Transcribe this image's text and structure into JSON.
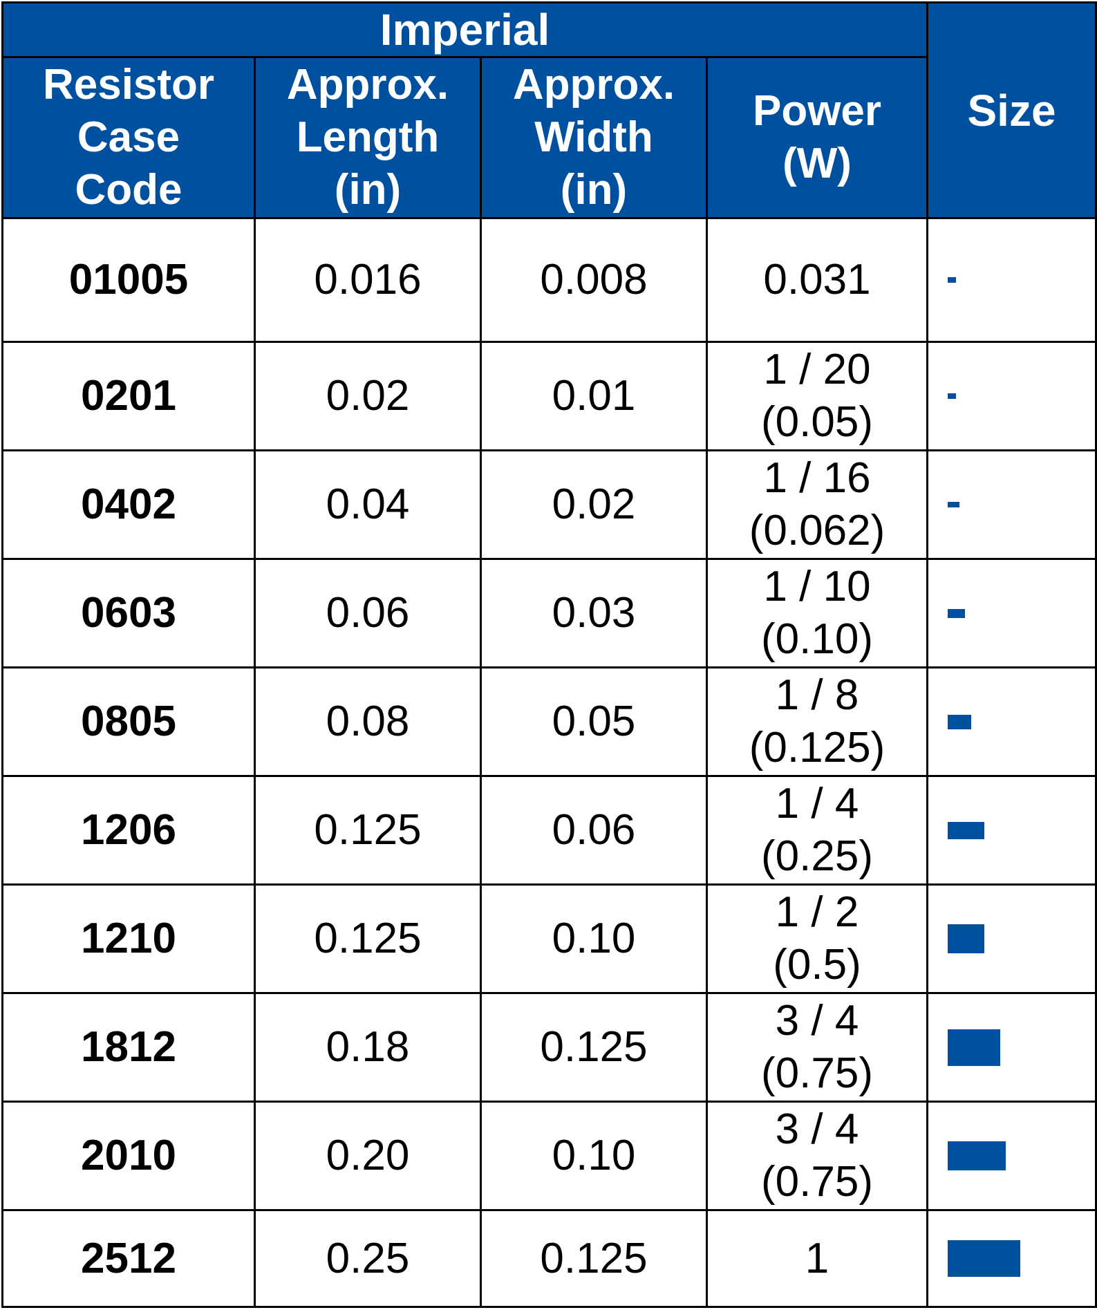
{
  "table": {
    "group_header": "Imperial",
    "columns": [
      {
        "label": "Resistor Case Code",
        "lines": [
          "Resistor",
          "Case",
          "Code"
        ]
      },
      {
        "label": "Approx. Length (in)",
        "lines": [
          "Approx.",
          "Length",
          "(in)"
        ]
      },
      {
        "label": "Approx. Width (in)",
        "lines": [
          "Approx.",
          "Width",
          "(in)"
        ]
      },
      {
        "label": "Power (W)",
        "lines": [
          "Power",
          "(W)"
        ]
      },
      {
        "label": "Size",
        "lines": [
          "Size"
        ]
      }
    ],
    "rows": [
      {
        "code": "01005",
        "length": "0.016",
        "width": "0.008",
        "power": [
          "0.031"
        ],
        "size_length_in": 0.016,
        "size_width_in": 0.008
      },
      {
        "code": "0201",
        "length": "0.02",
        "width": "0.01",
        "power": [
          "1 / 20",
          "(0.05)"
        ],
        "size_length_in": 0.02,
        "size_width_in": 0.01
      },
      {
        "code": "0402",
        "length": "0.04",
        "width": "0.02",
        "power": [
          "1 / 16",
          "(0.062)"
        ],
        "size_length_in": 0.04,
        "size_width_in": 0.02
      },
      {
        "code": "0603",
        "length": "0.06",
        "width": "0.03",
        "power": [
          "1 / 10",
          "(0.10)"
        ],
        "size_length_in": 0.06,
        "size_width_in": 0.03
      },
      {
        "code": "0805",
        "length": "0.08",
        "width": "0.05",
        "power": [
          "1 / 8",
          "(0.125)"
        ],
        "size_length_in": 0.08,
        "size_width_in": 0.05
      },
      {
        "code": "1206",
        "length": "0.125",
        "width": "0.06",
        "power": [
          "1 / 4",
          "(0.25)"
        ],
        "size_length_in": 0.125,
        "size_width_in": 0.06
      },
      {
        "code": "1210",
        "length": "0.125",
        "width": "0.10",
        "power": [
          "1 / 2",
          "(0.5)"
        ],
        "size_length_in": 0.125,
        "size_width_in": 0.1
      },
      {
        "code": "1812",
        "length": "0.18",
        "width": "0.125",
        "power": [
          "3 / 4",
          "(0.75)"
        ],
        "size_length_in": 0.18,
        "size_width_in": 0.125
      },
      {
        "code": "2010",
        "length": "0.20",
        "width": "0.10",
        "power": [
          "3 / 4",
          "(0.75)"
        ],
        "size_length_in": 0.2,
        "size_width_in": 0.1
      },
      {
        "code": "2512",
        "length": "0.25",
        "width": "0.125",
        "power": [
          "1"
        ],
        "size_length_in": 0.25,
        "size_width_in": 0.125
      }
    ]
  },
  "colors": {
    "header_bg": "#0050a0",
    "header_text": "#ffffff",
    "size_mark": "#0050a0",
    "border": "#000000"
  }
}
